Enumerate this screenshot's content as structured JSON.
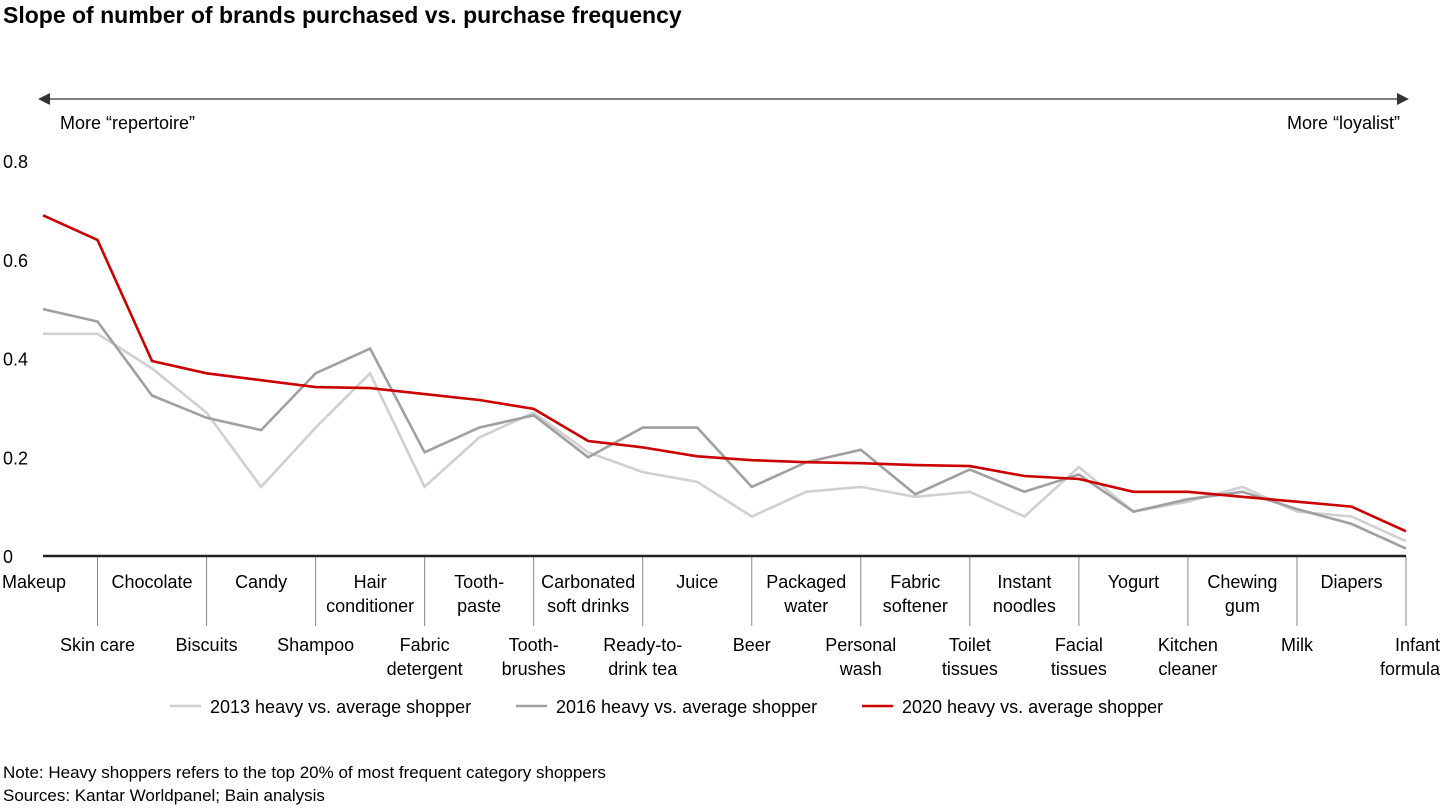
{
  "chart_data": {
    "type": "line",
    "title": "Slope of number of brands purchased vs. purchase frequency",
    "arrow_left_label": "More “repertoire”",
    "arrow_right_label": "More “loyalist”",
    "xlabel": "",
    "ylabel": "",
    "ylim": [
      0,
      0.8
    ],
    "yticks": [
      "0",
      "0.2",
      "0.4",
      "0.6",
      "0.8"
    ],
    "ytick_values": [
      0,
      0.2,
      0.4,
      0.6,
      0.8
    ],
    "grid": false,
    "legend_position": "bottom",
    "categories": [
      [
        "Makeup"
      ],
      [
        "Skin care"
      ],
      [
        "Chocolate"
      ],
      [
        "Biscuits"
      ],
      [
        "Candy"
      ],
      [
        "Shampoo"
      ],
      [
        "Hair",
        "conditioner"
      ],
      [
        "Fabric",
        "detergent"
      ],
      [
        "Tooth-",
        "paste"
      ],
      [
        "Tooth-",
        "brushes"
      ],
      [
        "Carbonated",
        "soft drinks"
      ],
      [
        "Ready-to-",
        "drink tea"
      ],
      [
        "Juice"
      ],
      [
        "Beer"
      ],
      [
        "Packaged",
        "water"
      ],
      [
        "Personal",
        "wash"
      ],
      [
        "Fabric",
        "softener"
      ],
      [
        "Toilet",
        "tissues"
      ],
      [
        "Instant",
        "noodles"
      ],
      [
        "Facial",
        "tissues"
      ],
      [
        "Yogurt"
      ],
      [
        "Kitchen",
        "cleaner"
      ],
      [
        "Chewing",
        "gum"
      ],
      [
        "Milk"
      ],
      [
        "Diapers"
      ],
      [
        "Infant",
        "formula"
      ]
    ],
    "series": [
      {
        "name": "2013 heavy vs. average shopper",
        "color": "#d0d0d0",
        "values": [
          0.45,
          0.45,
          0.38,
          0.29,
          0.14,
          0.26,
          0.37,
          0.14,
          0.24,
          0.29,
          0.21,
          0.17,
          0.15,
          0.08,
          0.13,
          0.14,
          0.12,
          0.13,
          0.08,
          0.18,
          0.09,
          0.11,
          0.14,
          0.09,
          0.08,
          0.03
        ]
      },
      {
        "name": "2016 heavy vs. average shopper",
        "color": "#a0a0a0",
        "values": [
          0.5,
          0.475,
          0.325,
          0.28,
          0.255,
          0.37,
          0.42,
          0.21,
          0.26,
          0.285,
          0.2,
          0.26,
          0.26,
          0.14,
          0.19,
          0.215,
          0.125,
          0.175,
          0.13,
          0.165,
          0.09,
          0.115,
          0.13,
          0.095,
          0.065,
          0.015
        ]
      },
      {
        "name": "2020 heavy vs. average shopper",
        "color": "#cc0000",
        "values": [
          0.69,
          0.64,
          0.395,
          0.37,
          0.356,
          0.342,
          0.34,
          0.328,
          0.316,
          0.298,
          0.233,
          0.22,
          0.202,
          0.194,
          0.19,
          0.188,
          0.184,
          0.182,
          0.162,
          0.156,
          0.13,
          0.13,
          0.12,
          0.11,
          0.1,
          0.05
        ]
      }
    ]
  },
  "notes": {
    "note": "Note: Heavy shoppers refers to the top 20% of most frequent category shoppers",
    "sources": "Sources: Kantar Worldpanel; Bain analysis"
  }
}
